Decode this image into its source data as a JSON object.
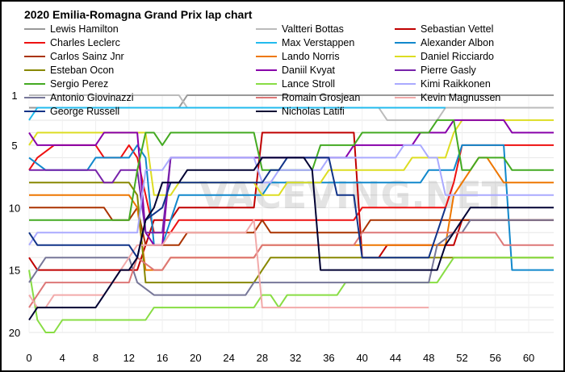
{
  "chart_data": {
    "type": "line",
    "title": "2020 Emilia-Romagna Grand Prix lap chart",
    "watermark": "VACEVING.NET",
    "xlim": [
      0,
      63
    ],
    "ylim": [
      20,
      1
    ],
    "y_inverted": true,
    "x_ticks": [
      0,
      4,
      8,
      12,
      16,
      20,
      24,
      28,
      32,
      36,
      40,
      44,
      48,
      52,
      56,
      60
    ],
    "y_ticks": [
      1,
      5,
      10,
      15,
      20
    ],
    "legend_position": "top-left",
    "grid": true,
    "series": [
      {
        "name": "Lewis Hamilton",
        "color": "#999999",
        "points": [
          [
            0,
            2
          ],
          [
            18,
            2
          ],
          [
            19,
            1
          ],
          [
            63,
            1
          ]
        ]
      },
      {
        "name": "Valtteri Bottas",
        "color": "#bbbbbb",
        "points": [
          [
            0,
            1
          ],
          [
            18,
            1
          ],
          [
            19,
            2
          ],
          [
            42,
            2
          ],
          [
            43,
            3
          ],
          [
            49,
            3
          ],
          [
            50,
            2
          ],
          [
            63,
            2
          ]
        ]
      },
      {
        "name": "Sebastian Vettel",
        "color": "#c00000",
        "points": [
          [
            0,
            14
          ],
          [
            1,
            15
          ],
          [
            13,
            15
          ],
          [
            15,
            11
          ],
          [
            17,
            11
          ],
          [
            18,
            10
          ],
          [
            27,
            10
          ],
          [
            28,
            4
          ],
          [
            39,
            4
          ],
          [
            40,
            14
          ],
          [
            42,
            14
          ],
          [
            43,
            13
          ],
          [
            51,
            13
          ],
          [
            52,
            11
          ],
          [
            63,
            11
          ]
        ]
      },
      {
        "name": "Charles Leclerc",
        "color": "#ee1111",
        "points": [
          [
            0,
            7
          ],
          [
            1,
            6
          ],
          [
            3,
            5
          ],
          [
            8,
            5
          ],
          [
            9,
            6
          ],
          [
            11,
            6
          ],
          [
            12,
            5
          ],
          [
            13,
            6
          ],
          [
            15,
            12
          ],
          [
            17,
            12
          ],
          [
            18,
            11
          ],
          [
            39,
            11
          ],
          [
            40,
            10
          ],
          [
            50,
            10
          ],
          [
            51,
            8
          ],
          [
            52,
            5
          ],
          [
            63,
            5
          ]
        ]
      },
      {
        "name": "Max Verstappen",
        "color": "#22bbee",
        "points": [
          [
            0,
            3
          ],
          [
            1,
            2
          ],
          [
            44,
            2
          ],
          [
            45,
            2
          ],
          [
            50,
            2
          ]
        ]
      },
      {
        "name": "Alexander Albon",
        "color": "#1188cc",
        "points": [
          [
            0,
            6
          ],
          [
            2,
            7
          ],
          [
            7,
            7
          ],
          [
            8,
            6
          ],
          [
            12,
            6
          ],
          [
            13,
            5
          ],
          [
            14,
            6
          ],
          [
            15,
            13
          ],
          [
            16,
            13
          ],
          [
            18,
            9
          ],
          [
            28,
            9
          ],
          [
            29,
            8
          ],
          [
            47,
            8
          ],
          [
            48,
            7
          ],
          [
            51,
            7
          ],
          [
            52,
            5
          ],
          [
            57,
            5
          ],
          [
            58,
            15
          ],
          [
            63,
            15
          ]
        ]
      },
      {
        "name": "Carlos Sainz Jnr",
        "color": "#aa3300",
        "points": [
          [
            0,
            10
          ],
          [
            9,
            10
          ],
          [
            10,
            11
          ],
          [
            12,
            11
          ],
          [
            13,
            10
          ],
          [
            14,
            13
          ],
          [
            18,
            13
          ],
          [
            19,
            12
          ],
          [
            27,
            12
          ],
          [
            28,
            11
          ],
          [
            29,
            12
          ],
          [
            40,
            12
          ],
          [
            41,
            11
          ],
          [
            63,
            11
          ]
        ]
      },
      {
        "name": "Lando Norris",
        "color": "#ee7700",
        "points": [
          [
            0,
            9
          ],
          [
            12,
            9
          ],
          [
            13,
            10
          ],
          [
            14,
            15
          ],
          [
            16,
            15
          ],
          [
            17,
            14
          ],
          [
            27,
            14
          ],
          [
            28,
            13
          ],
          [
            50,
            13
          ],
          [
            51,
            9
          ],
          [
            54,
            6
          ],
          [
            55,
            6
          ],
          [
            57,
            8
          ],
          [
            63,
            8
          ]
        ]
      },
      {
        "name": "Daniel Ricciardo",
        "color": "#dddd22",
        "points": [
          [
            0,
            5
          ],
          [
            1,
            4
          ],
          [
            14,
            4
          ],
          [
            15,
            9
          ],
          [
            17,
            9
          ],
          [
            18,
            8
          ],
          [
            27,
            8
          ],
          [
            28,
            9
          ],
          [
            30,
            9
          ],
          [
            31,
            8
          ],
          [
            35,
            8
          ],
          [
            36,
            7
          ],
          [
            45,
            7
          ],
          [
            46,
            6
          ],
          [
            50,
            6
          ],
          [
            51,
            4
          ],
          [
            52,
            3
          ],
          [
            63,
            3
          ]
        ]
      },
      {
        "name": "Esteban Ocon",
        "color": "#888800",
        "points": [
          [
            0,
            8
          ],
          [
            12,
            8
          ],
          [
            13,
            9
          ],
          [
            14,
            16
          ],
          [
            27,
            16
          ],
          [
            28,
            15
          ],
          [
            29,
            14
          ],
          [
            63,
            14
          ]
        ]
      },
      {
        "name": "Daniil Kvyat",
        "color": "#8800aa",
        "points": [
          [
            0,
            4
          ],
          [
            1,
            5
          ],
          [
            8,
            5
          ],
          [
            9,
            4
          ],
          [
            13,
            4
          ],
          [
            14,
            12
          ],
          [
            15,
            13
          ],
          [
            16,
            13
          ],
          [
            17,
            6
          ],
          [
            26,
            6
          ],
          [
            27,
            6
          ],
          [
            33,
            6
          ],
          [
            34,
            6
          ],
          [
            38,
            6
          ],
          [
            39,
            5
          ],
          [
            46,
            5
          ],
          [
            47,
            4
          ],
          [
            48,
            4
          ],
          [
            50,
            4
          ],
          [
            51,
            3
          ],
          [
            57,
            3
          ],
          [
            58,
            4
          ],
          [
            63,
            4
          ]
        ]
      },
      {
        "name": "Pierre Gasly",
        "color": "#7722aa",
        "points": [
          [
            0,
            7
          ],
          [
            8,
            7
          ],
          [
            9,
            8
          ],
          [
            10,
            8
          ],
          [
            11,
            7
          ],
          [
            13,
            7
          ],
          [
            14,
            12
          ],
          [
            16,
            12
          ],
          [
            17,
            6
          ],
          [
            27,
            6
          ],
          [
            28,
            6
          ],
          [
            33,
            6
          ],
          [
            34,
            6
          ],
          [
            39,
            6
          ]
        ]
      },
      {
        "name": "Sergio Perez",
        "color": "#44aa22",
        "points": [
          [
            0,
            11
          ],
          [
            12,
            11
          ],
          [
            13,
            7
          ],
          [
            14,
            4
          ],
          [
            15,
            4
          ],
          [
            16,
            5
          ],
          [
            17,
            4
          ],
          [
            27,
            4
          ],
          [
            28,
            7
          ],
          [
            34,
            7
          ],
          [
            35,
            5
          ],
          [
            39,
            5
          ],
          [
            40,
            4
          ],
          [
            48,
            4
          ],
          [
            49,
            3
          ],
          [
            51,
            3
          ],
          [
            52,
            7
          ],
          [
            53,
            7
          ],
          [
            54,
            6
          ],
          [
            57,
            6
          ],
          [
            58,
            7
          ],
          [
            63,
            7
          ]
        ]
      },
      {
        "name": "Lance Stroll",
        "color": "#88dd44",
        "points": [
          [
            0,
            15
          ],
          [
            1,
            19
          ],
          [
            2,
            20
          ],
          [
            3,
            20
          ],
          [
            4,
            19
          ],
          [
            14,
            19
          ],
          [
            15,
            18
          ],
          [
            27,
            18
          ],
          [
            28,
            17
          ],
          [
            29,
            17
          ],
          [
            30,
            18
          ],
          [
            31,
            17
          ],
          [
            37,
            17
          ],
          [
            38,
            16
          ],
          [
            49,
            16
          ],
          [
            50,
            15
          ],
          [
            51,
            14
          ],
          [
            63,
            14
          ]
        ]
      },
      {
        "name": "Kimi Raikkonen",
        "color": "#aaaaff",
        "points": [
          [
            0,
            13
          ],
          [
            1,
            12
          ],
          [
            13,
            12
          ],
          [
            14,
            7
          ],
          [
            16,
            7
          ],
          [
            17,
            6
          ],
          [
            27,
            6
          ],
          [
            28,
            8
          ],
          [
            29,
            8
          ],
          [
            30,
            7
          ],
          [
            35,
            7
          ],
          [
            36,
            6
          ],
          [
            44,
            6
          ],
          [
            45,
            5
          ],
          [
            47,
            5
          ],
          [
            48,
            6
          ],
          [
            49,
            6
          ],
          [
            50,
            9
          ],
          [
            63,
            9
          ]
        ]
      },
      {
        "name": "Antonio Giovinazzi",
        "color": "#777799",
        "points": [
          [
            0,
            16
          ],
          [
            1,
            15
          ],
          [
            2,
            14
          ],
          [
            12,
            14
          ],
          [
            13,
            16
          ],
          [
            15,
            17
          ],
          [
            26,
            17
          ],
          [
            27,
            16
          ],
          [
            48,
            16
          ],
          [
            49,
            13
          ],
          [
            51,
            12
          ],
          [
            52,
            12
          ],
          [
            53,
            11
          ],
          [
            63,
            11
          ]
        ]
      },
      {
        "name": "Romain Grosjean",
        "color": "#dd7777",
        "points": [
          [
            0,
            18
          ],
          [
            1,
            17
          ],
          [
            2,
            16
          ],
          [
            12,
            16
          ],
          [
            13,
            14
          ],
          [
            15,
            15
          ],
          [
            16,
            15
          ],
          [
            17,
            14
          ],
          [
            27,
            14
          ],
          [
            28,
            13
          ],
          [
            39,
            13
          ],
          [
            40,
            12
          ],
          [
            56,
            12
          ],
          [
            57,
            13
          ],
          [
            63,
            13
          ]
        ]
      },
      {
        "name": "Kevin Magnussen",
        "color": "#f2aaaa",
        "points": [
          [
            0,
            17
          ],
          [
            1,
            18
          ],
          [
            2,
            18
          ],
          [
            3,
            17
          ],
          [
            9,
            17
          ],
          [
            10,
            16
          ],
          [
            11,
            15
          ],
          [
            12,
            14
          ],
          [
            13,
            13
          ],
          [
            16,
            13
          ],
          [
            17,
            12
          ],
          [
            26,
            12
          ],
          [
            27,
            11
          ],
          [
            28,
            18
          ],
          [
            48,
            18
          ]
        ]
      },
      {
        "name": "George Russell",
        "color": "#113388",
        "points": [
          [
            0,
            12
          ],
          [
            1,
            13
          ],
          [
            12,
            13
          ],
          [
            13,
            14
          ],
          [
            14,
            11
          ],
          [
            16,
            10
          ],
          [
            17,
            8
          ],
          [
            28,
            8
          ],
          [
            29,
            7
          ],
          [
            30,
            7
          ],
          [
            31,
            6
          ],
          [
            36,
            6
          ],
          [
            37,
            9
          ],
          [
            39,
            9
          ],
          [
            40,
            14
          ],
          [
            48,
            14
          ],
          [
            49,
            12
          ],
          [
            50,
            10
          ]
        ]
      },
      {
        "name": "Nicholas Latifi",
        "color": "#000033",
        "points": [
          [
            0,
            19
          ],
          [
            1,
            18
          ],
          [
            8,
            18
          ],
          [
            9,
            17
          ],
          [
            10,
            16
          ],
          [
            11,
            15
          ],
          [
            12,
            15
          ],
          [
            13,
            14
          ],
          [
            14,
            11
          ],
          [
            15,
            10
          ],
          [
            16,
            8
          ],
          [
            18,
            8
          ],
          [
            19,
            7
          ],
          [
            27,
            7
          ],
          [
            28,
            6
          ],
          [
            33,
            6
          ],
          [
            34,
            7
          ],
          [
            35,
            15
          ],
          [
            48,
            15
          ],
          [
            49,
            15
          ],
          [
            50,
            13
          ],
          [
            51,
            12
          ],
          [
            52,
            11
          ],
          [
            53,
            10
          ],
          [
            63,
            10
          ]
        ]
      }
    ]
  }
}
